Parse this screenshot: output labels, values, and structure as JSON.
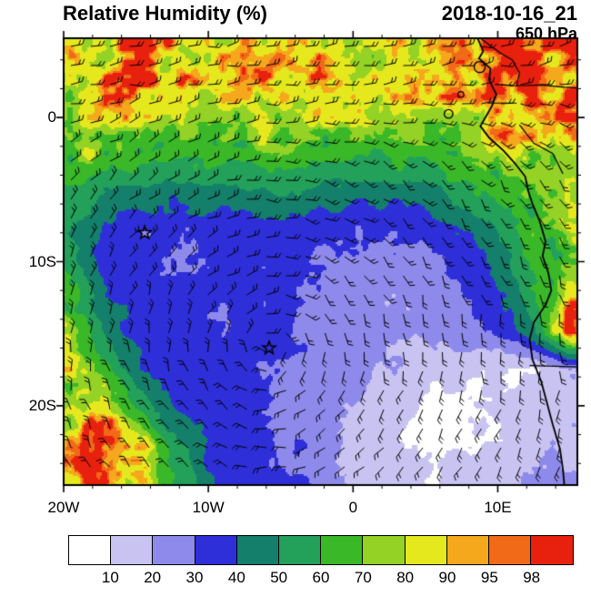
{
  "header": {
    "title": "Relative Humidity (%)",
    "datetime": "2018-10-16_21",
    "level": "650 hPa"
  },
  "axes": {
    "x_ticks": [
      {
        "label": "20W",
        "lon": -20
      },
      {
        "label": "10W",
        "lon": -10
      },
      {
        "label": "0",
        "lon": 0
      },
      {
        "label": "10E",
        "lon": 10
      }
    ],
    "y_ticks": [
      {
        "label": "0",
        "lat": 0
      },
      {
        "label": "10S",
        "lat": -10
      },
      {
        "label": "20S",
        "lat": -20
      }
    ],
    "lon_range": [
      -20,
      15.5
    ],
    "lat_range": [
      -25.5,
      5.5
    ]
  },
  "colorbar": {
    "labels": [
      "10",
      "20",
      "30",
      "40",
      "50",
      "60",
      "70",
      "80",
      "90",
      "95",
      "98"
    ],
    "colors": [
      "#ffffff",
      "#c9c3f2",
      "#8e8aeb",
      "#2e2fd9",
      "#147f6a",
      "#23a05a",
      "#3ab828",
      "#94d225",
      "#e6e81e",
      "#f5a81c",
      "#f06a18",
      "#e8200e"
    ]
  },
  "chart_data": {
    "type": "heatmap",
    "title": "Relative Humidity (%)",
    "units": "%",
    "level": "650 hPa",
    "valid_time": "2018-10-16_21",
    "levels": [
      10,
      20,
      30,
      40,
      50,
      60,
      70,
      80,
      90,
      95,
      98
    ],
    "lons": [
      -20,
      -17.5,
      -15,
      -12.5,
      -10,
      -7.5,
      -5,
      -2.5,
      0,
      2.5,
      5,
      7.5,
      10,
      12.5,
      15
    ],
    "lats": [
      5,
      2.5,
      0,
      -2.5,
      -5,
      -7.5,
      -10,
      -12.5,
      -15,
      -17.5,
      -20,
      -22.5,
      -25
    ],
    "values": [
      [
        85,
        90,
        98,
        90,
        85,
        88,
        95,
        90,
        85,
        82,
        88,
        92,
        98,
        98,
        98
      ],
      [
        82,
        88,
        95,
        92,
        82,
        85,
        92,
        88,
        82,
        80,
        85,
        88,
        95,
        98,
        98
      ],
      [
        78,
        82,
        85,
        80,
        78,
        80,
        82,
        80,
        76,
        76,
        80,
        82,
        88,
        92,
        90
      ],
      [
        72,
        70,
        68,
        65,
        65,
        66,
        68,
        66,
        64,
        62,
        65,
        70,
        75,
        82,
        85
      ],
      [
        62,
        52,
        48,
        45,
        46,
        48,
        50,
        48,
        46,
        45,
        48,
        55,
        65,
        75,
        80
      ],
      [
        55,
        40,
        34,
        32,
        34,
        36,
        38,
        36,
        33,
        32,
        34,
        40,
        52,
        68,
        75
      ],
      [
        58,
        38,
        32,
        31,
        32,
        34,
        32,
        29,
        27,
        25,
        27,
        33,
        45,
        62,
        72
      ],
      [
        72,
        42,
        33,
        32,
        33,
        32,
        30,
        27,
        24,
        22,
        24,
        28,
        38,
        55,
        88
      ],
      [
        75,
        52,
        36,
        33,
        32,
        33,
        31,
        27,
        26,
        22,
        21,
        24,
        30,
        45,
        95
      ],
      [
        78,
        65,
        42,
        36,
        34,
        32,
        29,
        25,
        25,
        20,
        15,
        12,
        10,
        9,
        20
      ],
      [
        82,
        90,
        58,
        40,
        35,
        33,
        28,
        25,
        19,
        14,
        9,
        8,
        12,
        15,
        20
      ],
      [
        85,
        95,
        85,
        52,
        37,
        34,
        30,
        26,
        17,
        11,
        8,
        8,
        9,
        18,
        18
      ],
      [
        88,
        96,
        90,
        62,
        42,
        35,
        31,
        28,
        19,
        14,
        10,
        13,
        17,
        22,
        20
      ]
    ],
    "markers": [
      {
        "type": "star",
        "lon": -14.4,
        "lat": -8
      },
      {
        "type": "star",
        "lon": -5.8,
        "lat": -16
      }
    ],
    "wind": {
      "display": "barbs",
      "anticyclone_center": {
        "lon": -5.8,
        "lat": -16
      },
      "tropical_easterlies_north_of_lat": -3
    },
    "coastline": [
      [
        8.6,
        5.5
      ],
      [
        9.0,
        4.6
      ],
      [
        8.7,
        4.1
      ],
      [
        9.5,
        3.4
      ],
      [
        9.4,
        2.6
      ],
      [
        9.9,
        1.6
      ],
      [
        9.6,
        0.8
      ],
      [
        9.2,
        0.1
      ],
      [
        8.8,
        -0.6
      ],
      [
        9.4,
        -1.4
      ],
      [
        10.4,
        -2.3
      ],
      [
        11.2,
        -3.2
      ],
      [
        11.9,
        -4.1
      ],
      [
        12.1,
        -5.1
      ],
      [
        12.4,
        -6.0
      ],
      [
        12.9,
        -7.2
      ],
      [
        13.3,
        -8.6
      ],
      [
        13.1,
        -9.6
      ],
      [
        13.5,
        -10.8
      ],
      [
        13.7,
        -12.0
      ],
      [
        13.3,
        -13.0
      ],
      [
        12.5,
        -14.2
      ],
      [
        12.2,
        -15.4
      ],
      [
        12.4,
        -16.8
      ],
      [
        13.0,
        -18.3
      ],
      [
        13.4,
        -19.8
      ],
      [
        13.8,
        -21.3
      ],
      [
        14.3,
        -23.0
      ],
      [
        14.5,
        -24.4
      ],
      [
        14.6,
        -25.5
      ]
    ],
    "borders": [
      [
        [
          8.8,
          5.5
        ],
        [
          9.6,
          4.9
        ],
        [
          10.3,
          4.4
        ],
        [
          11.0,
          4.0
        ],
        [
          11.5,
          3.1
        ],
        [
          11.3,
          2.2
        ]
      ],
      [
        [
          9.8,
          2.3
        ],
        [
          11.3,
          2.2
        ],
        [
          13.0,
          2.25
        ],
        [
          14.6,
          2.1
        ],
        [
          15.5,
          2.05
        ]
      ],
      [
        [
          9.3,
          1.0
        ],
        [
          11.3,
          1.0
        ]
      ],
      [
        [
          11.5,
          -0.5
        ],
        [
          12.5,
          -1.8
        ],
        [
          13.8,
          -2.5
        ],
        [
          14.5,
          -3.9
        ]
      ],
      [
        [
          12.2,
          -17.2
        ],
        [
          13.8,
          -17.25
        ],
        [
          15.5,
          -17.3
        ]
      ]
    ],
    "islands": [
      {
        "lon": 6.6,
        "lat": 0.25,
        "r": 0.3
      },
      {
        "lon": 7.45,
        "lat": 1.6,
        "r": 0.2
      },
      {
        "lon": 8.75,
        "lat": 3.5,
        "r": 0.38
      }
    ]
  }
}
